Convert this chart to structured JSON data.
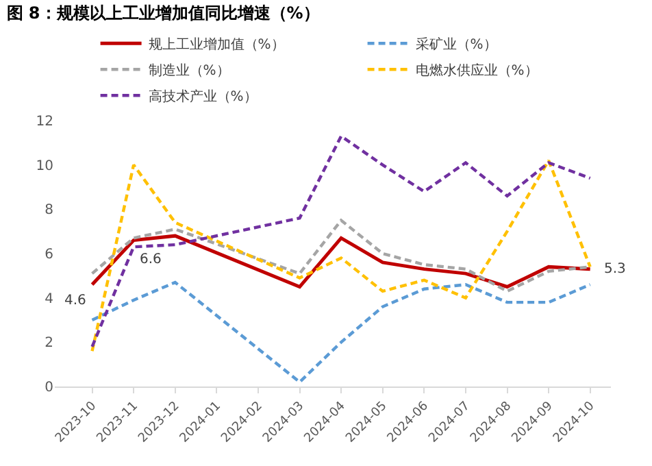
{
  "chart_data": {
    "type": "line",
    "title": "图 8：规模以上工业增加值同比增速（%）",
    "categories": [
      "2023-10",
      "2023-11",
      "2023-12",
      "2024-01",
      "2024-02",
      "2024-03",
      "2024-04",
      "2024-05",
      "2024-06",
      "2024-07",
      "2024-08",
      "2024-09",
      "2024-10"
    ],
    "series": [
      {
        "name": "规上工业增加值（%）",
        "color": "#c00000",
        "line_style": "solid",
        "values": [
          4.6,
          6.6,
          6.8,
          null,
          null,
          4.5,
          6.7,
          5.6,
          5.3,
          5.1,
          4.5,
          5.4,
          5.3
        ],
        "value_labels": [
          "4.6",
          "6.6",
          null,
          null,
          null,
          null,
          null,
          null,
          null,
          null,
          null,
          null,
          "5.3"
        ]
      },
      {
        "name": "采矿业（%）",
        "color": "#5b9bd5",
        "line_style": "dashed",
        "values": [
          3.0,
          3.9,
          4.7,
          null,
          null,
          0.2,
          2.0,
          3.6,
          4.4,
          4.6,
          3.8,
          3.8,
          4.6
        ]
      },
      {
        "name": "制造业（%）",
        "color": "#a5a5a5",
        "line_style": "dashed",
        "values": [
          5.1,
          6.7,
          7.1,
          null,
          null,
          5.1,
          7.5,
          6.0,
          5.5,
          5.3,
          4.3,
          5.2,
          5.4
        ]
      },
      {
        "name": "电燃水供应业（%）",
        "color": "#ffc000",
        "line_style": "dashed",
        "values": [
          1.6,
          10.0,
          7.4,
          null,
          null,
          4.9,
          5.8,
          4.3,
          4.8,
          4.0,
          7.0,
          10.2,
          5.4
        ]
      },
      {
        "name": "高技术产业（%）",
        "color": "#7030a0",
        "line_style": "dashed",
        "values": [
          1.8,
          6.3,
          6.4,
          null,
          null,
          7.6,
          11.3,
          10.0,
          8.8,
          10.1,
          8.6,
          10.1,
          9.4
        ]
      }
    ],
    "ylim": [
      0,
      12
    ],
    "yticks": [
      0,
      2,
      4,
      6,
      8,
      10,
      12
    ],
    "legend": "top",
    "marker": "none"
  }
}
